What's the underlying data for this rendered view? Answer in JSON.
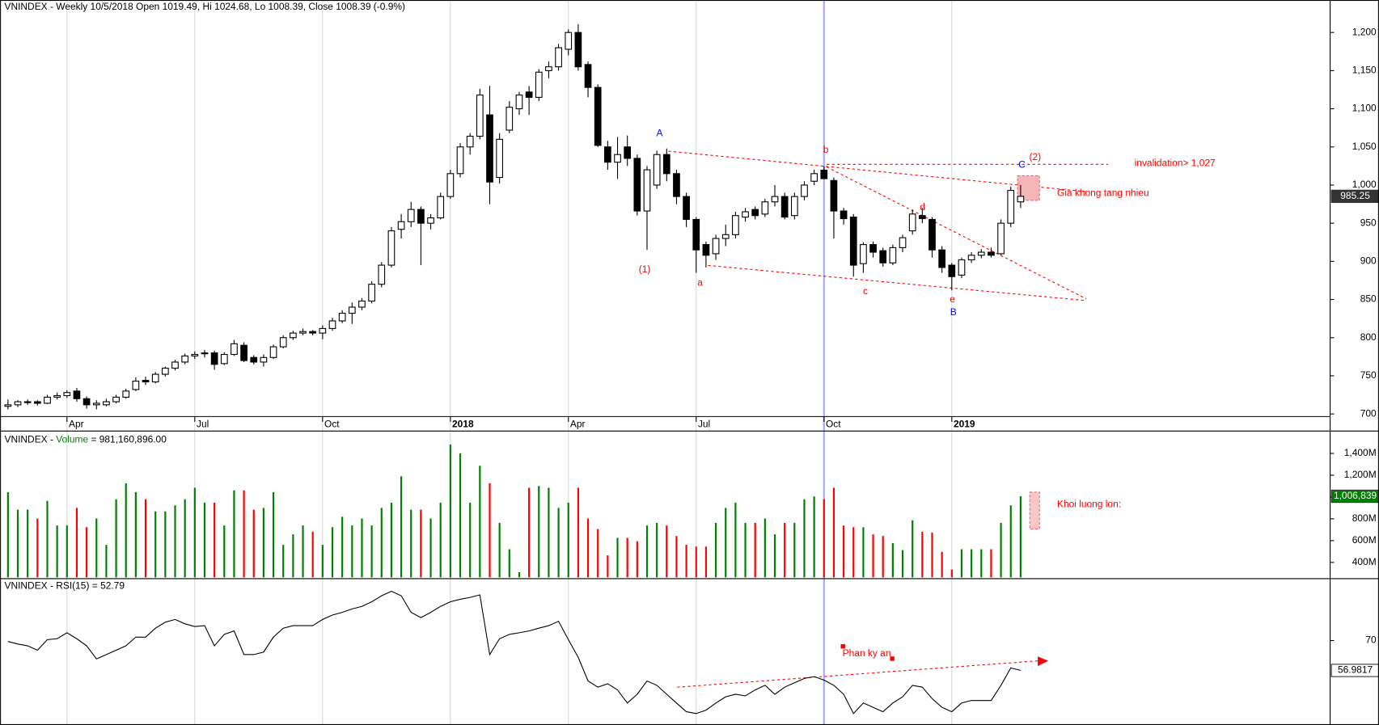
{
  "chart_data": [
    {
      "type": "candlestick",
      "title": "VNINDEX - Weekly 10/5/2018 Open 1019.49, Hi 1024.68, Lo 1008.39, Close 1008.39 (-0.9%)",
      "categories": [
        null,
        null,
        null,
        null,
        null,
        null,
        "Apr",
        null,
        null,
        null,
        null,
        null,
        null,
        null,
        null,
        null,
        null,
        null,
        null,
        "Jul",
        null,
        null,
        null,
        null,
        null,
        null,
        null,
        null,
        null,
        null,
        null,
        null,
        "Oct",
        null,
        null,
        null,
        null,
        null,
        null,
        null,
        null,
        null,
        null,
        null,
        null,
        "2018",
        null,
        null,
        null,
        null,
        null,
        null,
        null,
        null,
        null,
        null,
        null,
        "Apr",
        null,
        null,
        null,
        null,
        null,
        null,
        null,
        null,
        null,
        null,
        null,
        null,
        "Jul",
        null,
        null,
        null,
        null,
        null,
        null,
        null,
        null,
        null,
        null,
        null,
        null,
        "Oct",
        null,
        null,
        null,
        null,
        null,
        null,
        null,
        null,
        null,
        null,
        null,
        null,
        "2019",
        null,
        null,
        null,
        null,
        null,
        null,
        null
      ],
      "open": [
        710,
        712,
        715,
        716,
        714,
        722,
        724,
        730,
        720,
        712,
        712,
        716,
        722,
        732,
        744,
        742,
        752,
        760,
        768,
        776,
        779,
        780,
        766,
        778,
        790,
        774,
        768,
        774,
        788,
        800,
        806,
        808,
        806,
        812,
        822,
        832,
        840,
        848,
        870,
        895,
        942,
        952,
        968,
        950,
        957,
        985,
        1015,
        1050,
        1064,
        1092,
        1010,
        1072,
        1100,
        1122,
        1115,
        1150,
        1155,
        1178,
        1200,
        1158,
        1128,
        1050,
        1030,
        1050,
        1035,
        966,
        1000,
        1040,
        1015,
        985,
        955,
        922,
        910,
        930,
        935,
        958,
        968,
        962,
        978,
        985,
        960,
        985,
        1005,
        1019.49,
        1006,
        966,
        958,
        897,
        922,
        914,
        898,
        918,
        940,
        960,
        955,
        915,
        895,
        882,
        902,
        908,
        912,
        910,
        950,
        978
      ],
      "high": [
        719,
        718,
        719,
        718,
        725,
        728,
        731,
        734,
        723,
        718,
        720,
        725,
        733,
        748,
        749,
        755,
        762,
        771,
        779,
        782,
        784,
        783,
        781,
        797,
        794,
        777,
        778,
        791,
        803,
        809,
        812,
        810,
        816,
        826,
        836,
        846,
        852,
        874,
        899,
        945,
        962,
        978,
        972,
        962,
        990,
        1020,
        1055,
        1068,
        1126,
        1130,
        1068,
        1110,
        1122,
        1130,
        1152,
        1162,
        1185,
        1204,
        1211,
        1162,
        1132,
        1058,
        1063,
        1065,
        1040,
        1025,
        1045,
        1048,
        1020,
        990,
        958,
        926,
        935,
        948,
        965,
        970,
        972,
        982,
        1000,
        990,
        990,
        1005,
        1020,
        1024.68,
        1010,
        970,
        962,
        925,
        926,
        918,
        922,
        935,
        968,
        970,
        958,
        920,
        898,
        905,
        912,
        916,
        918,
        955,
        998,
        1000
      ],
      "low": [
        706,
        709,
        712,
        711,
        713,
        719,
        721,
        716,
        707,
        706,
        710,
        714,
        720,
        730,
        738,
        740,
        749,
        757,
        765,
        772,
        774,
        758,
        764,
        776,
        768,
        765,
        762,
        772,
        786,
        797,
        803,
        803,
        798,
        809,
        819,
        818,
        836,
        845,
        866,
        892,
        930,
        945,
        895,
        942,
        955,
        982,
        1010,
        1040,
        1060,
        975,
        1002,
        1068,
        1092,
        1092,
        1110,
        1140,
        1150,
        1170,
        1150,
        1115,
        1050,
        1020,
        1008,
        1025,
        960,
        915,
        995,
        1005,
        975,
        945,
        885,
        892,
        902,
        920,
        930,
        952,
        955,
        958,
        972,
        955,
        955,
        980,
        1000,
        1008.39,
        930,
        948,
        880,
        885,
        905,
        893,
        895,
        912,
        935,
        950,
        905,
        885,
        862,
        878,
        898,
        904,
        905,
        908,
        945,
        970
      ],
      "close": [
        712,
        716,
        716,
        714,
        722,
        724,
        728,
        720,
        712,
        714,
        716,
        722,
        730,
        743,
        742,
        752,
        760,
        768,
        776,
        778,
        780,
        765,
        778,
        792,
        770,
        768,
        774,
        788,
        800,
        806,
        808,
        806,
        812,
        822,
        832,
        840,
        848,
        870,
        895,
        940,
        952,
        968,
        950,
        957,
        985,
        1015,
        1050,
        1064,
        1118,
        1004,
        1060,
        1102,
        1118,
        1115,
        1148,
        1155,
        1180,
        1200,
        1155,
        1128,
        1052,
        1030,
        1040,
        1035,
        966,
        1020,
        1040,
        1015,
        985,
        955,
        915,
        908,
        930,
        935,
        960,
        965,
        960,
        978,
        985,
        958,
        985,
        1000,
        1015,
        1008.39,
        966,
        956,
        895,
        922,
        912,
        898,
        918,
        931,
        962,
        956,
        915,
        892,
        880,
        902,
        908,
        912,
        908,
        950,
        993,
        985.25
      ],
      "ylim": [
        680,
        1242
      ],
      "yticks": [
        700,
        750,
        800,
        850,
        900,
        950,
        {
          "value": 1000,
          "label": "1,000"
        },
        {
          "value": 1050,
          "label": "1,050"
        },
        {
          "value": 1100,
          "label": "1,100"
        },
        {
          "value": 1150,
          "label": "1,150"
        },
        {
          "value": 1200,
          "label": "1,200"
        }
      ],
      "annotations": [
        {
          "text": "A",
          "color": "#0000ff"
        },
        {
          "text": "(1)",
          "color": "#ff0000"
        },
        {
          "text": "a",
          "color": "#ff0000"
        },
        {
          "text": "b",
          "color": "#ff0000"
        },
        {
          "text": "c",
          "color": "#ff0000"
        },
        {
          "text": "d",
          "color": "#ff0000"
        },
        {
          "text": "e",
          "color": "#ff0000"
        },
        {
          "text": "B",
          "color": "#0000ff"
        },
        {
          "text": "C",
          "color": "#0000ff"
        },
        {
          "text": "(2)",
          "color": "#ff0000"
        },
        {
          "text": "invalidation> 1,027",
          "color": "#ff0000"
        },
        {
          "text": "Gia khong tang nhieu",
          "color": "#ff0000"
        }
      ]
    },
    {
      "type": "bar",
      "title": [
        "VNINDEX - ",
        "Volume",
        " = 981,160,896.00"
      ],
      "values": [
        1045,
        884,
        884,
        803,
        965,
        739,
        739,
        900,
        723,
        803,
        561,
        980,
        1126,
        1045,
        980,
        868,
        868,
        924,
        980,
        1085,
        948,
        948,
        739,
        1061,
        1061,
        884,
        900,
        1045,
        561,
        658,
        739,
        682,
        561,
        723,
        819,
        739,
        803,
        739,
        900,
        948,
        1190,
        884,
        884,
        803,
        948,
        1481,
        1400,
        948,
        1287,
        1126,
        763,
        521,
        310,
        1085,
        1101,
        1085,
        900,
        948,
        1085,
        803,
        706,
        465,
        626,
        626,
        594,
        739,
        763,
        739,
        642,
        561,
        545,
        545,
        763,
        900,
        948,
        763,
        763,
        803,
        658,
        763,
        763,
        980,
        1005,
        981.160896,
        1085,
        739,
        723,
        723,
        658,
        642,
        577,
        513,
        787,
        682,
        674,
        497,
        335,
        521,
        521,
        521,
        521,
        763,
        924,
        1006.839
      ],
      "up_color": "#008000",
      "down_color": "#ff0000",
      "last_value_label": "1,006,839",
      "ylim": [
        263,
        1585
      ],
      "yticks": [
        {
          "value": 400,
          "label": "400M"
        },
        {
          "value": 600,
          "label": "600M"
        },
        {
          "value": 800,
          "label": "800M"
        },
        {
          "value": 1000,
          "label": "1,000M"
        },
        {
          "value": 1200,
          "label": "1,200M"
        },
        {
          "value": 1400,
          "label": "1,400M"
        }
      ],
      "annotations": [
        {
          "text": "Khoi luong lon:",
          "color": "#ff0000"
        }
      ]
    },
    {
      "type": "line",
      "title": "VNINDEX - RSI(15) = 52.79",
      "color": "#000000",
      "values": [
        69.6,
        68.5,
        67.7,
        65.8,
        70.4,
        70.8,
        73.4,
        70.8,
        67.7,
        62.0,
        63.9,
        65.8,
        67.7,
        71.5,
        71.5,
        75.4,
        78.0,
        79.2,
        77.3,
        76.1,
        76.5,
        67.7,
        72.7,
        74.2,
        63.9,
        63.9,
        65.0,
        71.5,
        75.4,
        76.5,
        76.5,
        76.5,
        79.2,
        81.1,
        82.3,
        83.8,
        84.9,
        86.9,
        89.5,
        91.5,
        89.5,
        82.3,
        80.0,
        82.3,
        84.9,
        86.9,
        88.0,
        88.8,
        89.9,
        63.9,
        70.8,
        72.7,
        73.4,
        74.2,
        75.4,
        76.5,
        78.4,
        70.4,
        62.7,
        52.4,
        49.7,
        51.2,
        48.5,
        42.8,
        46.6,
        52.4,
        50.5,
        46.6,
        42.8,
        39.0,
        38.2,
        39.7,
        42.8,
        45.5,
        46.6,
        45.9,
        48.5,
        50.5,
        46.6,
        49.7,
        51.6,
        53.5,
        54.3,
        52.79,
        50.5,
        46.6,
        38.2,
        42.8,
        40.9,
        39.0,
        42.8,
        45.5,
        50.5,
        49.7,
        44.7,
        40.9,
        39.0,
        42.8,
        43.9,
        43.9,
        43.9,
        50.5,
        58.1,
        56.9817
      ],
      "ylim": [
        33.6,
        96
      ],
      "yticks": [
        70
      ],
      "annotations": [
        {
          "text": "Phan ky an",
          "color": "#ff0000"
        }
      ]
    }
  ]
}
